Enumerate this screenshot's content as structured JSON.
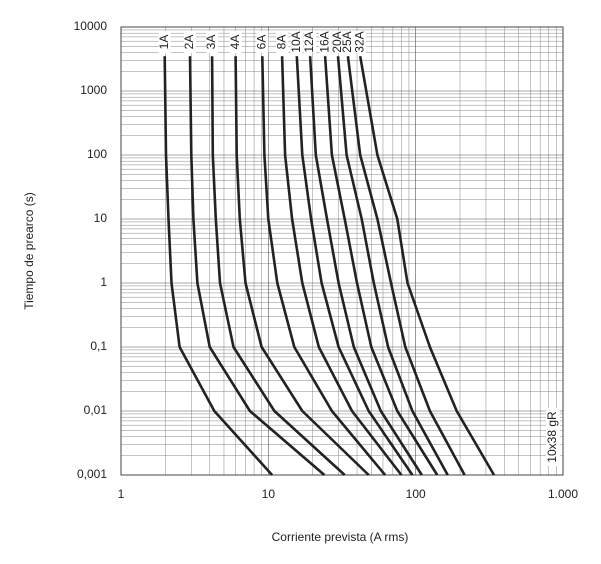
{
  "chart_data": {
    "type": "line",
    "x_label": "Corriente prevista (A rms)",
    "y_label": "Tiempo de prearco (s)",
    "annotation": "10x38 gR",
    "xlog": true,
    "ylog": true,
    "grid": true,
    "xlim": [
      1,
      1000
    ],
    "ylim": [
      0.001,
      10000
    ],
    "xticks": [
      1,
      10,
      100,
      {
        "value": 1000,
        "label": "1.000"
      }
    ],
    "yticks": [
      {
        "value": 0.001,
        "label": "0,001"
      },
      {
        "value": 0.01,
        "label": "0,01"
      },
      {
        "value": 0.1,
        "label": "0,1"
      },
      1,
      10,
      100,
      1000,
      10000
    ],
    "series": [
      {
        "name": "1A",
        "color": "#222222",
        "x": [
          1.98,
          2.02,
          2.1,
          2.2,
          2.5,
          4.3,
          10.6
        ],
        "values": [
          3500,
          100,
          10,
          1,
          0.1,
          0.01,
          0.001
        ]
      },
      {
        "name": "2A",
        "color": "#222222",
        "x": [
          2.94,
          3.0,
          3.1,
          3.3,
          4.0,
          7.5,
          24
        ],
        "values": [
          3500,
          100,
          10,
          1,
          0.1,
          0.01,
          0.001
        ]
      },
      {
        "name": "3A",
        "color": "#222222",
        "x": [
          4.15,
          4.2,
          4.4,
          4.7,
          5.8,
          11,
          33
        ],
        "values": [
          3500,
          100,
          10,
          1,
          0.1,
          0.01,
          0.001
        ]
      },
      {
        "name": "4A",
        "color": "#222222",
        "x": [
          6.0,
          6.1,
          6.4,
          7.0,
          9.0,
          17,
          48
        ],
        "values": [
          3500,
          100,
          10,
          1,
          0.1,
          0.01,
          0.001
        ]
      },
      {
        "name": "6A",
        "color": "#222222",
        "x": [
          9.1,
          9.4,
          10,
          11.5,
          15,
          27,
          62
        ],
        "values": [
          3500,
          100,
          10,
          1,
          0.1,
          0.01,
          0.001
        ]
      },
      {
        "name": "8A",
        "color": "#222222",
        "x": [
          12.4,
          13,
          14.5,
          17,
          22,
          37,
          80
        ],
        "values": [
          3500,
          100,
          10,
          1,
          0.1,
          0.01,
          0.001
        ]
      },
      {
        "name": "10A",
        "color": "#222222",
        "x": [
          15.6,
          17,
          19.5,
          23,
          30,
          48,
          95
        ],
        "values": [
          3500,
          100,
          10,
          1,
          0.1,
          0.01,
          0.001
        ]
      },
      {
        "name": "12A",
        "color": "#222222",
        "x": [
          19.2,
          21,
          25,
          30,
          38,
          58,
          110
        ],
        "values": [
          3500,
          100,
          10,
          1,
          0.1,
          0.01,
          0.001
        ]
      },
      {
        "name": "16A",
        "color": "#222222",
        "x": [
          24.3,
          27,
          33,
          40,
          50,
          75,
          140
        ],
        "values": [
          3500,
          100,
          10,
          1,
          0.1,
          0.01,
          0.001
        ]
      },
      {
        "name": "20A",
        "color": "#222222",
        "x": [
          29.7,
          34,
          43,
          52,
          65,
          95,
          165
        ],
        "values": [
          3500,
          100,
          10,
          1,
          0.1,
          0.01,
          0.001
        ]
      },
      {
        "name": "25A",
        "color": "#222222",
        "x": [
          34.7,
          42,
          55,
          68,
          85,
          125,
          215
        ],
        "values": [
          3500,
          100,
          10,
          1,
          0.1,
          0.01,
          0.001
        ]
      },
      {
        "name": "32A",
        "color": "#222222",
        "x": [
          42,
          55,
          75,
          88,
          125,
          190,
          340
        ],
        "values": [
          3500,
          100,
          10,
          1,
          0.1,
          0.01,
          0.001
        ]
      }
    ]
  }
}
